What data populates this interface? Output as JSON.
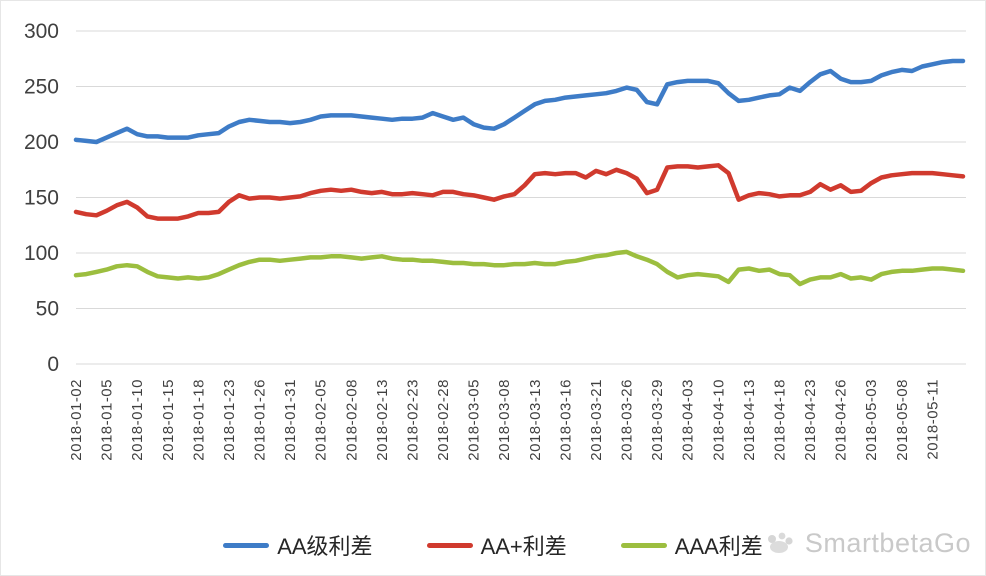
{
  "watermark": {
    "text": "SmartbetaGo"
  },
  "chart_data": {
    "type": "line",
    "title": "",
    "xlabel": "",
    "ylabel": "",
    "ylim": [
      0,
      300
    ],
    "y_ticks": [
      0,
      50,
      100,
      150,
      200,
      250,
      300
    ],
    "grid": true,
    "legend_position": "bottom",
    "x_labels": [
      "2018-01-02",
      "2018-01-05",
      "2018-01-10",
      "2018-01-15",
      "2018-01-18",
      "2018-01-23",
      "2018-01-26",
      "2018-01-31",
      "2018-02-05",
      "2018-02-08",
      "2018-02-13",
      "2018-02-23",
      "2018-02-28",
      "2018-03-05",
      "2018-03-08",
      "2018-03-13",
      "2018-03-16",
      "2018-03-21",
      "2018-03-26",
      "2018-03-29",
      "2018-04-03",
      "2018-04-10",
      "2018-04-13",
      "2018-04-18",
      "2018-04-23",
      "2018-04-26",
      "2018-05-03",
      "2018-05-08",
      "2018-05-11"
    ],
    "label_every": 3,
    "n_points": 88,
    "series": [
      {
        "name": "AA级利差",
        "color": "#3E7CC7",
        "values": [
          202,
          201,
          200,
          204,
          208,
          212,
          207,
          205,
          205,
          204,
          204,
          204,
          206,
          207,
          208,
          214,
          218,
          220,
          219,
          218,
          218,
          217,
          218,
          220,
          223,
          224,
          224,
          224,
          223,
          222,
          221,
          220,
          221,
          221,
          222,
          226,
          223,
          220,
          222,
          216,
          213,
          212,
          216,
          222,
          228,
          234,
          237,
          238,
          240,
          241,
          242,
          243,
          244,
          246,
          249,
          247,
          236,
          234,
          252,
          254,
          255,
          255,
          255,
          253,
          244,
          237,
          238,
          240,
          242,
          243,
          249,
          246,
          254,
          261,
          264,
          257,
          254,
          254,
          255,
          260,
          263,
          265,
          264,
          268,
          270,
          272,
          273,
          273
        ]
      },
      {
        "name": "AA+利差",
        "color": "#D03A2E",
        "values": [
          137,
          135,
          134,
          138,
          143,
          146,
          141,
          133,
          131,
          131,
          131,
          133,
          136,
          136,
          137,
          146,
          152,
          149,
          150,
          150,
          149,
          150,
          151,
          154,
          156,
          157,
          156,
          157,
          155,
          154,
          155,
          153,
          153,
          154,
          153,
          152,
          155,
          155,
          153,
          152,
          150,
          148,
          151,
          153,
          161,
          171,
          172,
          171,
          172,
          172,
          168,
          174,
          171,
          175,
          172,
          167,
          154,
          157,
          177,
          178,
          178,
          177,
          178,
          179,
          172,
          148,
          152,
          154,
          153,
          151,
          152,
          152,
          155,
          162,
          157,
          161,
          155,
          156,
          163,
          168,
          170,
          171,
          172,
          172,
          172,
          171,
          170,
          169
        ]
      },
      {
        "name": "AAA利差",
        "color": "#9CBE3F",
        "values": [
          80,
          81,
          83,
          85,
          88,
          89,
          88,
          83,
          79,
          78,
          77,
          78,
          77,
          78,
          81,
          85,
          89,
          92,
          94,
          94,
          93,
          94,
          95,
          96,
          96,
          97,
          97,
          96,
          95,
          96,
          97,
          95,
          94,
          94,
          93,
          93,
          92,
          91,
          91,
          90,
          90,
          89,
          89,
          90,
          90,
          91,
          90,
          90,
          92,
          93,
          95,
          97,
          98,
          100,
          101,
          97,
          94,
          90,
          83,
          78,
          80,
          81,
          80,
          79,
          74,
          85,
          86,
          84,
          85,
          81,
          80,
          72,
          76,
          78,
          78,
          81,
          77,
          78,
          76,
          81,
          83,
          84,
          84,
          85,
          86,
          86,
          85,
          84
        ]
      }
    ]
  }
}
